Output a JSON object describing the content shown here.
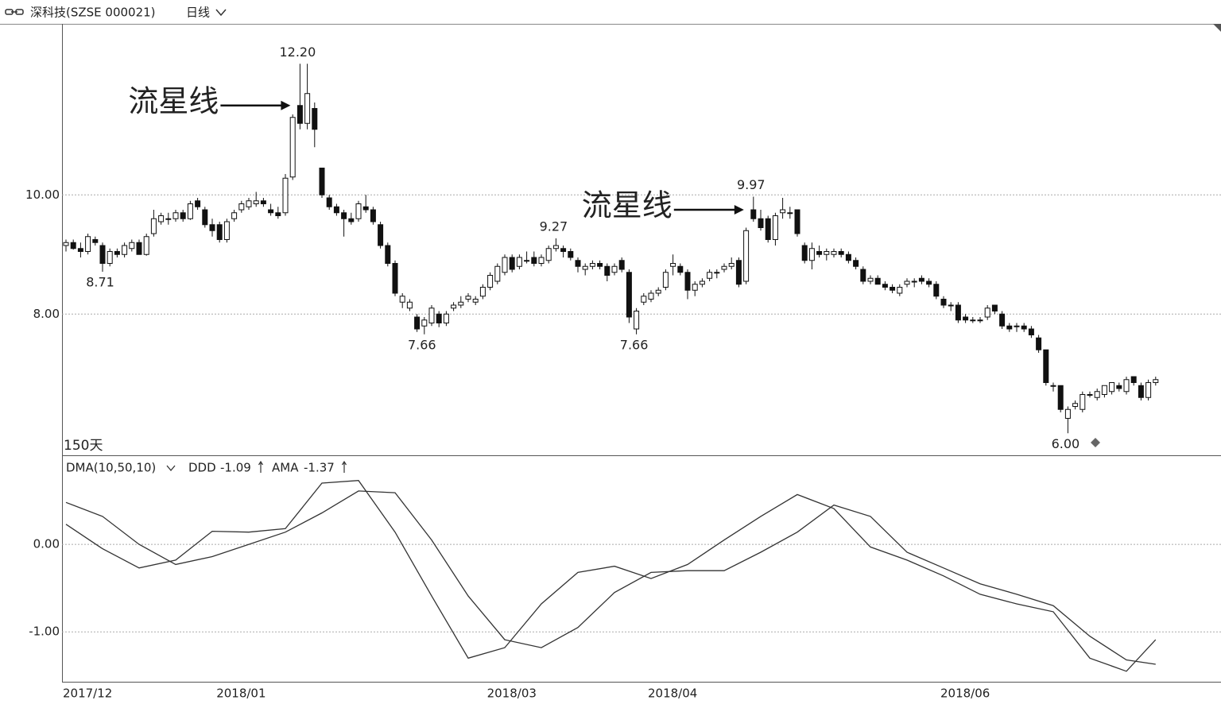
{
  "header": {
    "symbol": "深科技(SZSE 000021)",
    "period": "日线"
  },
  "chart_data": [
    {
      "type": "candlestick",
      "period_label": "150天",
      "categories": [
        "2017/12",
        null,
        null,
        null,
        null,
        null,
        null,
        null,
        null,
        null,
        null,
        null,
        null,
        null,
        null,
        null,
        null,
        null,
        null,
        null,
        null,
        "2018/01",
        null,
        null,
        null,
        null,
        null,
        null,
        null,
        null,
        null,
        null,
        null,
        null,
        null,
        null,
        null,
        null,
        null,
        null,
        null,
        null,
        null,
        null,
        null,
        null,
        null,
        null,
        null,
        null,
        null,
        null,
        null,
        null,
        null,
        null,
        null,
        null,
        "2018/03",
        null,
        null,
        null,
        null,
        null,
        null,
        null,
        null,
        null,
        null,
        null,
        null,
        null,
        null,
        null,
        null,
        null,
        null,
        null,
        null,
        null,
        "2018/04",
        null,
        null,
        null,
        null,
        null,
        null,
        null,
        null,
        null,
        null,
        null,
        null,
        null,
        null,
        null,
        null,
        null,
        null,
        null,
        null,
        null,
        null,
        null,
        null,
        null,
        null,
        null,
        null,
        null,
        null,
        null,
        null,
        null,
        null,
        null,
        null,
        null,
        null,
        null,
        "2018/06",
        null,
        null,
        null,
        null,
        null,
        null,
        null,
        null,
        null,
        null,
        null,
        null,
        null,
        null,
        null,
        null,
        null,
        null,
        null,
        null,
        null,
        null,
        null,
        null,
        null,
        null,
        null,
        null,
        null
      ],
      "ohlc": [
        [
          9.15,
          9.25,
          9.05,
          9.2
        ],
        [
          9.2,
          9.25,
          9.08,
          9.1
        ],
        [
          9.1,
          9.2,
          8.95,
          9.05
        ],
        [
          9.05,
          9.35,
          9.0,
          9.3
        ],
        [
          9.25,
          9.3,
          9.15,
          9.2
        ],
        [
          9.15,
          9.2,
          8.71,
          8.85
        ],
        [
          8.85,
          9.1,
          8.8,
          9.05
        ],
        [
          9.05,
          9.1,
          8.95,
          9.0
        ],
        [
          9.0,
          9.2,
          8.95,
          9.15
        ],
        [
          9.1,
          9.25,
          9.05,
          9.2
        ],
        [
          9.2,
          9.25,
          9.0,
          9.0
        ],
        [
          9.0,
          9.35,
          8.98,
          9.3
        ],
        [
          9.35,
          9.75,
          9.3,
          9.6
        ],
        [
          9.55,
          9.7,
          9.5,
          9.65
        ],
        [
          9.6,
          9.7,
          9.5,
          9.6
        ],
        [
          9.6,
          9.75,
          9.55,
          9.7
        ],
        [
          9.7,
          9.75,
          9.55,
          9.6
        ],
        [
          9.6,
          9.9,
          9.58,
          9.85
        ],
        [
          9.9,
          9.95,
          9.75,
          9.8
        ],
        [
          9.75,
          9.8,
          9.45,
          9.5
        ],
        [
          9.5,
          9.6,
          9.3,
          9.4
        ],
        [
          9.5,
          9.55,
          9.2,
          9.25
        ],
        [
          9.25,
          9.6,
          9.2,
          9.55
        ],
        [
          9.6,
          9.75,
          9.55,
          9.7
        ],
        [
          9.75,
          9.9,
          9.7,
          9.85
        ],
        [
          9.8,
          9.95,
          9.75,
          9.9
        ],
        [
          9.85,
          10.05,
          9.8,
          9.9
        ],
        [
          9.9,
          9.95,
          9.8,
          9.85
        ],
        [
          9.75,
          9.85,
          9.65,
          9.7
        ],
        [
          9.7,
          9.8,
          9.6,
          9.65
        ],
        [
          9.7,
          10.35,
          9.65,
          10.28
        ],
        [
          10.3,
          11.35,
          10.25,
          11.3
        ],
        [
          11.5,
          12.2,
          11.1,
          11.2
        ],
        [
          11.2,
          12.2,
          11.1,
          11.7
        ],
        [
          11.45,
          11.55,
          10.8,
          11.1
        ],
        [
          10.45,
          10.45,
          9.95,
          10.0
        ],
        [
          9.95,
          10.0,
          9.75,
          9.8
        ],
        [
          9.8,
          9.85,
          9.65,
          9.7
        ],
        [
          9.7,
          9.75,
          9.3,
          9.6
        ],
        [
          9.6,
          9.7,
          9.5,
          9.55
        ],
        [
          9.6,
          9.9,
          9.55,
          9.85
        ],
        [
          9.8,
          10.0,
          9.7,
          9.75
        ],
        [
          9.75,
          9.8,
          9.5,
          9.55
        ],
        [
          9.5,
          9.55,
          9.1,
          9.15
        ],
        [
          9.15,
          9.2,
          8.8,
          8.85
        ],
        [
          8.85,
          8.9,
          8.3,
          8.35
        ],
        [
          8.2,
          8.35,
          8.1,
          8.3
        ],
        [
          8.1,
          8.25,
          8.05,
          8.2
        ],
        [
          7.95,
          8.0,
          7.7,
          7.75
        ],
        [
          7.8,
          7.95,
          7.66,
          7.9
        ],
        [
          7.85,
          8.15,
          7.8,
          8.1
        ],
        [
          8.0,
          8.05,
          7.78,
          7.85
        ],
        [
          7.85,
          8.05,
          7.8,
          8.0
        ],
        [
          8.1,
          8.2,
          8.05,
          8.15
        ],
        [
          8.15,
          8.3,
          8.1,
          8.2
        ],
        [
          8.25,
          8.35,
          8.2,
          8.3
        ],
        [
          8.2,
          8.3,
          8.15,
          8.25
        ],
        [
          8.3,
          8.5,
          8.25,
          8.45
        ],
        [
          8.45,
          8.7,
          8.4,
          8.65
        ],
        [
          8.55,
          8.85,
          8.5,
          8.8
        ],
        [
          8.7,
          9.0,
          8.65,
          8.95
        ],
        [
          8.95,
          9.0,
          8.7,
          8.75
        ],
        [
          8.8,
          9.0,
          8.75,
          8.95
        ],
        [
          8.9,
          9.05,
          8.85,
          8.9
        ],
        [
          8.95,
          9.05,
          8.8,
          8.85
        ],
        [
          8.85,
          9.0,
          8.8,
          8.95
        ],
        [
          8.9,
          9.15,
          8.85,
          9.1
        ],
        [
          9.1,
          9.27,
          9.05,
          9.15
        ],
        [
          9.1,
          9.15,
          8.95,
          9.05
        ],
        [
          9.05,
          9.1,
          8.9,
          8.95
        ],
        [
          8.9,
          8.95,
          8.7,
          8.8
        ],
        [
          8.75,
          8.85,
          8.65,
          8.8
        ],
        [
          8.8,
          8.9,
          8.75,
          8.85
        ],
        [
          8.85,
          8.9,
          8.75,
          8.8
        ],
        [
          8.8,
          8.85,
          8.55,
          8.65
        ],
        [
          8.7,
          8.85,
          8.65,
          8.8
        ],
        [
          8.9,
          8.95,
          8.7,
          8.75
        ],
        [
          8.7,
          8.75,
          7.85,
          7.95
        ],
        [
          7.75,
          8.1,
          7.66,
          8.05
        ],
        [
          8.2,
          8.35,
          8.15,
          8.3
        ],
        [
          8.25,
          8.4,
          8.2,
          8.35
        ],
        [
          8.35,
          8.45,
          8.3,
          8.4
        ],
        [
          8.45,
          8.75,
          8.4,
          8.7
        ],
        [
          8.8,
          9.0,
          8.65,
          8.85
        ],
        [
          8.8,
          8.85,
          8.65,
          8.7
        ],
        [
          8.7,
          8.75,
          8.25,
          8.4
        ],
        [
          8.4,
          8.55,
          8.3,
          8.5
        ],
        [
          8.5,
          8.6,
          8.45,
          8.55
        ],
        [
          8.6,
          8.75,
          8.55,
          8.7
        ],
        [
          8.7,
          8.75,
          8.6,
          8.7
        ],
        [
          8.75,
          8.85,
          8.7,
          8.8
        ],
        [
          8.8,
          8.95,
          8.75,
          8.85
        ],
        [
          8.9,
          8.95,
          8.45,
          8.5
        ],
        [
          8.55,
          9.45,
          8.5,
          9.4
        ],
        [
          9.75,
          9.97,
          9.55,
          9.6
        ],
        [
          9.6,
          9.75,
          9.4,
          9.45
        ],
        [
          9.6,
          9.65,
          9.2,
          9.25
        ],
        [
          9.25,
          9.7,
          9.15,
          9.65
        ],
        [
          9.7,
          9.95,
          9.6,
          9.75
        ],
        [
          9.7,
          9.8,
          9.6,
          9.7
        ],
        [
          9.75,
          9.75,
          9.3,
          9.35
        ],
        [
          9.15,
          9.2,
          8.85,
          8.9
        ],
        [
          8.9,
          9.2,
          8.75,
          9.1
        ],
        [
          9.05,
          9.15,
          8.95,
          9.0
        ],
        [
          9.0,
          9.1,
          8.9,
          9.05
        ],
        [
          9.0,
          9.1,
          8.95,
          9.05
        ],
        [
          9.05,
          9.1,
          8.95,
          9.0
        ],
        [
          9.0,
          9.05,
          8.85,
          8.9
        ],
        [
          8.9,
          8.95,
          8.75,
          8.8
        ],
        [
          8.75,
          8.8,
          8.5,
          8.55
        ],
        [
          8.55,
          8.65,
          8.5,
          8.6
        ],
        [
          8.6,
          8.65,
          8.5,
          8.5
        ],
        [
          8.5,
          8.55,
          8.4,
          8.45
        ],
        [
          8.45,
          8.5,
          8.35,
          8.4
        ],
        [
          8.35,
          8.5,
          8.3,
          8.45
        ],
        [
          8.5,
          8.6,
          8.45,
          8.55
        ],
        [
          8.55,
          8.6,
          8.45,
          8.55
        ],
        [
          8.6,
          8.65,
          8.5,
          8.55
        ],
        [
          8.55,
          8.6,
          8.45,
          8.5
        ],
        [
          8.5,
          8.55,
          8.25,
          8.3
        ],
        [
          8.25,
          8.3,
          8.1,
          8.15
        ],
        [
          8.15,
          8.2,
          8.05,
          8.15
        ],
        [
          8.15,
          8.2,
          7.85,
          7.9
        ],
        [
          7.95,
          8.0,
          7.85,
          7.9
        ],
        [
          7.9,
          7.95,
          7.85,
          7.9
        ],
        [
          7.9,
          7.95,
          7.85,
          7.9
        ],
        [
          7.95,
          8.15,
          7.9,
          8.1
        ],
        [
          8.15,
          8.15,
          8.0,
          8.05
        ],
        [
          8.0,
          8.05,
          7.75,
          7.8
        ],
        [
          7.8,
          7.85,
          7.7,
          7.75
        ],
        [
          7.8,
          7.85,
          7.7,
          7.8
        ],
        [
          7.8,
          7.85,
          7.7,
          7.75
        ],
        [
          7.75,
          7.8,
          7.6,
          7.65
        ],
        [
          7.6,
          7.65,
          7.35,
          7.4
        ],
        [
          7.4,
          7.4,
          6.8,
          6.85
        ],
        [
          6.8,
          6.85,
          6.7,
          6.8
        ],
        [
          6.8,
          6.8,
          6.35,
          6.4
        ],
        [
          6.25,
          6.45,
          6.0,
          6.4
        ],
        [
          6.45,
          6.55,
          6.4,
          6.5
        ],
        [
          6.4,
          6.7,
          6.35,
          6.65
        ],
        [
          6.65,
          6.7,
          6.6,
          6.65
        ],
        [
          6.6,
          6.75,
          6.55,
          6.7
        ],
        [
          6.65,
          6.8,
          6.6,
          6.8
        ],
        [
          6.7,
          6.85,
          6.65,
          6.85
        ],
        [
          6.8,
          6.85,
          6.7,
          6.75
        ],
        [
          6.7,
          6.95,
          6.65,
          6.9
        ],
        [
          6.95,
          6.95,
          6.8,
          6.85
        ],
        [
          6.8,
          6.85,
          6.55,
          6.6
        ],
        [
          6.6,
          6.9,
          6.55,
          6.85
        ],
        [
          6.85,
          6.95,
          6.8,
          6.9
        ]
      ],
      "up_color": "#ffffff",
      "down_color": "#111111",
      "ylim": [
        5.63,
        12.87
      ],
      "yticks": [
        {
          "value": 10,
          "label": "10.00"
        },
        {
          "value": 8,
          "label": "8.00"
        }
      ],
      "grid": true,
      "price_labels": [
        {
          "candle": 32,
          "value": 12.2,
          "label": "12.20"
        },
        {
          "candle": 5,
          "value": 8.71,
          "label": "8.71"
        },
        {
          "candle": 49,
          "value": 7.66,
          "label": "7.66"
        },
        {
          "candle": 67,
          "value": 9.27,
          "label": "9.27"
        },
        {
          "candle": 78,
          "value": 7.66,
          "label": "7.66"
        },
        {
          "candle": 94,
          "value": 9.97,
          "label": "9.97"
        },
        {
          "candle": 137,
          "value": 6.0,
          "label": "6.00"
        }
      ],
      "annotations": [
        {
          "text": "流星线",
          "candle": 32
        },
        {
          "text": "流星线",
          "candle": 94
        }
      ]
    },
    {
      "type": "line",
      "title": "DMA(10,50,10)",
      "x": [
        0,
        5,
        10,
        15,
        20,
        25,
        30,
        35,
        40,
        45,
        50,
        55,
        60,
        65,
        70,
        75,
        80,
        85,
        90,
        95,
        100,
        105,
        110,
        115,
        120,
        125,
        130,
        135,
        140,
        145,
        149
      ],
      "xlim": [
        0,
        149
      ],
      "series": [
        {
          "name": "DDD",
          "color": "#333333",
          "values": [
            0.23,
            -0.05,
            -0.27,
            -0.18,
            0.15,
            0.14,
            0.18,
            0.7,
            0.73,
            0.14,
            -0.59,
            -1.3,
            -1.18,
            -0.68,
            -0.32,
            -0.25,
            -0.39,
            -0.23,
            0.05,
            0.32,
            0.57,
            0.41,
            -0.03,
            -0.18,
            -0.36,
            -0.57,
            -0.68,
            -0.77,
            -1.3,
            -1.45,
            -1.09
          ]
        },
        {
          "name": "AMA",
          "color": "#333333",
          "values": [
            0.48,
            0.32,
            0.0,
            -0.23,
            -0.14,
            0.0,
            0.14,
            0.36,
            0.61,
            0.59,
            0.05,
            -0.59,
            -1.09,
            -1.18,
            -0.95,
            -0.55,
            -0.32,
            -0.3,
            -0.3,
            -0.09,
            0.14,
            0.45,
            0.32,
            -0.09,
            -0.27,
            -0.45,
            -0.57,
            -0.7,
            -1.05,
            -1.32,
            -1.37
          ]
        }
      ],
      "ylim": [
        -1.57,
        1.0
      ],
      "yticks": [
        {
          "value": 0,
          "label": "0.00"
        },
        {
          "value": -1,
          "label": "-1.00"
        }
      ],
      "grid": true
    }
  ]
}
